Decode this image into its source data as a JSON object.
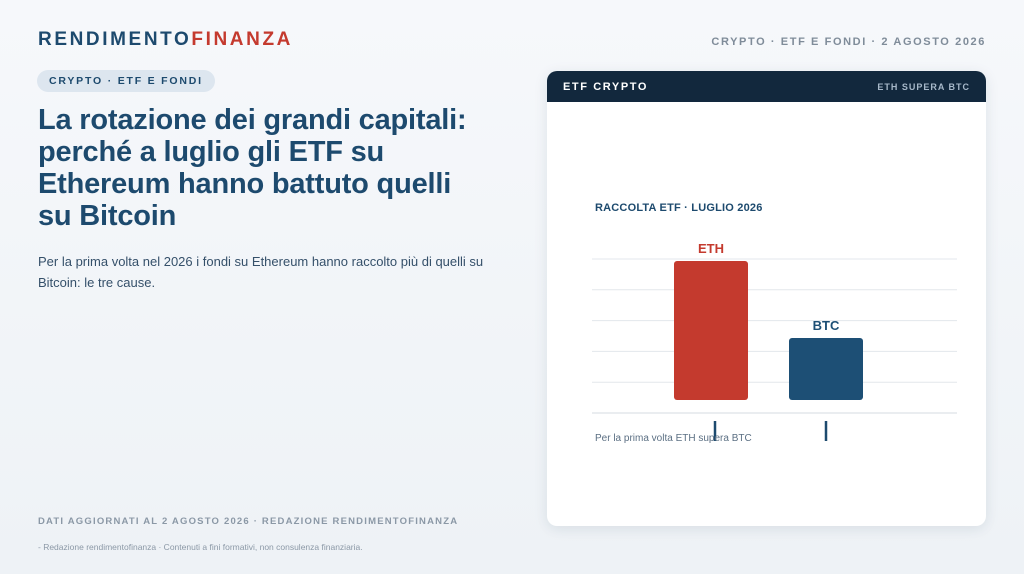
{
  "brand": {
    "part1": "RENDIMENTO",
    "part2": "FINANZA"
  },
  "header_meta": "CRYPTO · ETF E FONDI · 2 AGOSTO 2026",
  "kicker": "CRYPTO · ETF E FONDI",
  "headline": "La rotazione dei grandi capitali: perché a luglio gli ETF su Ethereum hanno battuto quelli su Bitcoin",
  "lede": "Per la prima volta nel 2026 i fondi su Ethereum hanno raccolto più di quelli su Bitcoin: le tre cause.",
  "footer_meta": "DATI AGGIORNATI AL 2 AGOSTO 2026 · REDAZIONE RENDIMENTOFINANZA",
  "disclaimer": "- Redazione rendimentofinanza · Contenuti a fini formativi, non consulenza finanziaria.",
  "card": {
    "title": "ETF CRYPTO",
    "tag": "ETH SUPERA BTC"
  },
  "colors": {
    "eth": "#c43a2e",
    "btc": "#1d4f75",
    "grid": "#e3e7ec",
    "axis": "#d5dbe2",
    "marker": "#1d4a6e"
  },
  "chart_data": {
    "type": "bar",
    "title": "RACCOLTA ETF · LUGLIO 2026",
    "categories": [
      "ETH",
      "BTC"
    ],
    "values": [
      5,
      2.5
    ],
    "ylim": [
      0,
      5
    ],
    "grid": true,
    "annotation": "Per la prima volta ETH supera BTC"
  }
}
